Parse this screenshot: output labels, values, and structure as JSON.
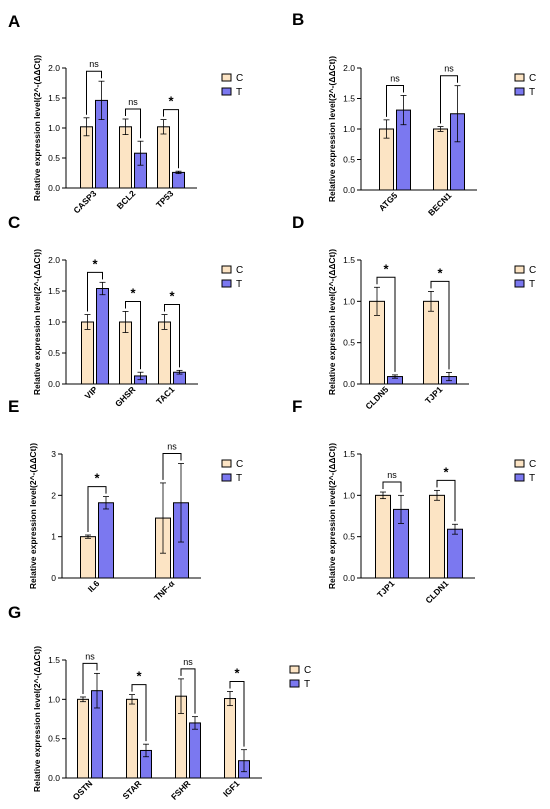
{
  "figure": {
    "colors": {
      "C": "#fce4c4",
      "T": "#7b78f0",
      "stroke": "#000000"
    },
    "legend_labels": [
      "C",
      "T"
    ]
  },
  "chart_data": [
    {
      "type": "bar",
      "panel": "A",
      "ylabel": "Relative expression level(2^-(ΔΔCt))",
      "ylim": [
        0,
        2.0
      ],
      "yticks": [
        "0.0",
        "0.5",
        "1.0",
        "1.5",
        "2.0"
      ],
      "ytick_values": [
        0,
        0.5,
        1.0,
        1.5,
        2.0
      ],
      "categories": [
        "CASP3",
        "BCL2",
        "TP53"
      ],
      "series": [
        {
          "name": "C",
          "values": [
            1.02,
            1.02,
            1.02
          ],
          "errors": [
            0.15,
            0.13,
            0.12
          ]
        },
        {
          "name": "T",
          "values": [
            1.46,
            0.58,
            0.26
          ],
          "errors": [
            0.32,
            0.2,
            0.02
          ]
        }
      ],
      "significance": [
        "ns",
        "ns",
        "*"
      ],
      "legend": "right"
    },
    {
      "type": "bar",
      "panel": "B",
      "ylabel": "Relative expression level(2^-(ΔΔCt))",
      "ylim": [
        0,
        2.0
      ],
      "yticks": [
        "0.0",
        "0.5",
        "1.0",
        "1.5",
        "2.0"
      ],
      "ytick_values": [
        0,
        0.5,
        1.0,
        1.5,
        2.0
      ],
      "categories": [
        "ATG5",
        "BECN1"
      ],
      "series": [
        {
          "name": "C",
          "values": [
            1.0,
            1.0
          ],
          "errors": [
            0.15,
            0.04
          ]
        },
        {
          "name": "T",
          "values": [
            1.31,
            1.25
          ],
          "errors": [
            0.24,
            0.46
          ]
        }
      ],
      "significance": [
        "ns",
        "ns"
      ],
      "legend": "right"
    },
    {
      "type": "bar",
      "panel": "C",
      "ylabel": "Relative expression level(2^-(ΔΔCt))",
      "ylim": [
        0,
        2.0
      ],
      "yticks": [
        "0.0",
        "0.5",
        "1.0",
        "1.5",
        "2.0"
      ],
      "ytick_values": [
        0,
        0.5,
        1.0,
        1.5,
        2.0
      ],
      "categories": [
        "VIP",
        "GHSR",
        "TAC1"
      ],
      "series": [
        {
          "name": "C",
          "values": [
            1.0,
            1.0,
            1.0
          ],
          "errors": [
            0.12,
            0.17,
            0.12
          ]
        },
        {
          "name": "T",
          "values": [
            1.54,
            0.13,
            0.19
          ],
          "errors": [
            0.1,
            0.06,
            0.03
          ]
        }
      ],
      "significance": [
        "*",
        "*",
        "*"
      ],
      "legend": "right"
    },
    {
      "type": "bar",
      "panel": "D",
      "ylabel": "Relative expression level(2^-(ΔΔCt))",
      "ylim": [
        0,
        1.5
      ],
      "yticks": [
        "0.0",
        "0.5",
        "1.0",
        "1.5"
      ],
      "ytick_values": [
        0,
        0.5,
        1.0,
        1.5
      ],
      "categories": [
        "CLDN5",
        "TJP1"
      ],
      "series": [
        {
          "name": "C",
          "values": [
            1.0,
            1.0
          ],
          "errors": [
            0.17,
            0.12
          ]
        },
        {
          "name": "T",
          "values": [
            0.09,
            0.09
          ],
          "errors": [
            0.02,
            0.05
          ]
        }
      ],
      "significance": [
        "*",
        "*"
      ],
      "legend": "right"
    },
    {
      "type": "bar",
      "panel": "E",
      "ylabel": "Relative expression level(2^-(ΔΔCt))",
      "ylim": [
        0,
        3
      ],
      "yticks": [
        "0",
        "1",
        "2",
        "3"
      ],
      "ytick_values": [
        0,
        1,
        2,
        3
      ],
      "categories": [
        "IL6",
        "TNF-α"
      ],
      "series": [
        {
          "name": "C",
          "values": [
            1.0,
            1.45
          ],
          "errors": [
            0.04,
            0.85
          ]
        },
        {
          "name": "T",
          "values": [
            1.82,
            1.82
          ],
          "errors": [
            0.15,
            0.95
          ]
        }
      ],
      "significance": [
        "*",
        "ns"
      ],
      "legend": "right"
    },
    {
      "type": "bar",
      "panel": "F",
      "ylabel": "Relative expression level(2^-(ΔΔCt))",
      "ylim": [
        0,
        1.5
      ],
      "yticks": [
        "0.0",
        "0.5",
        "1.0",
        "1.5"
      ],
      "ytick_values": [
        0,
        0.5,
        1.0,
        1.5
      ],
      "categories": [
        "TJP1",
        "CLDN1"
      ],
      "series": [
        {
          "name": "C",
          "values": [
            1.0,
            1.0
          ],
          "errors": [
            0.04,
            0.06
          ]
        },
        {
          "name": "T",
          "values": [
            0.83,
            0.59
          ],
          "errors": [
            0.17,
            0.06
          ]
        }
      ],
      "significance": [
        "ns",
        "*"
      ],
      "legend": "right"
    },
    {
      "type": "bar",
      "panel": "G",
      "ylabel": "Relative expression level(2^-(ΔΔCt))",
      "ylim": [
        0,
        1.5
      ],
      "yticks": [
        "0.0",
        "0.5",
        "1.0",
        "1.5"
      ],
      "ytick_values": [
        0,
        0.5,
        1.0,
        1.5
      ],
      "categories": [
        "OSTN",
        "STAR",
        "FSHR",
        "IGF1"
      ],
      "series": [
        {
          "name": "C",
          "values": [
            1.0,
            1.0,
            1.04,
            1.01
          ],
          "errors": [
            0.03,
            0.06,
            0.22,
            0.09
          ]
        },
        {
          "name": "T",
          "values": [
            1.11,
            0.35,
            0.7,
            0.22
          ],
          "errors": [
            0.22,
            0.08,
            0.08,
            0.14
          ]
        }
      ],
      "significance": [
        "ns",
        "*",
        "ns",
        "*"
      ],
      "legend": "right"
    }
  ]
}
